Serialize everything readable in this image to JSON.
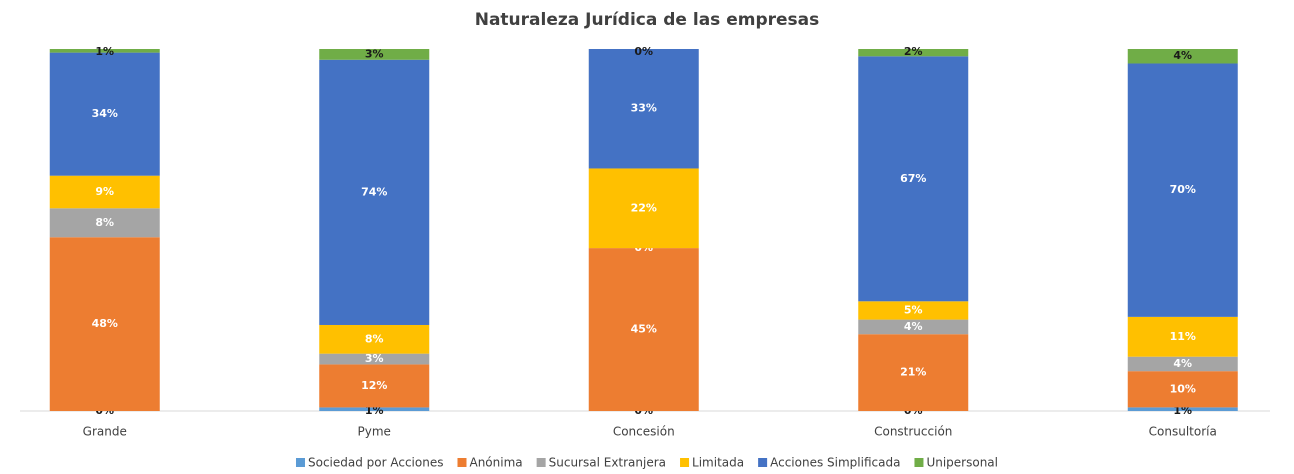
{
  "chart_data": {
    "type": "stacked_percent_bar",
    "title": "Naturaleza Jurídica de las empresas",
    "categories": [
      "Grande",
      "Pyme",
      "Concesión",
      "Construcción",
      "Consultoría"
    ],
    "series": [
      {
        "name": "Sociedad por Acciones",
        "color": "#5b9bd5",
        "values": [
          0,
          1,
          0,
          0,
          1
        ],
        "value_labels": [
          "0%",
          "1%",
          "0%",
          "0%",
          "1%"
        ]
      },
      {
        "name": "Anónima",
        "color": "#ed7d31",
        "values": [
          48,
          12,
          45,
          21,
          10
        ],
        "value_labels": [
          "48%",
          "12%",
          "45%",
          "21%",
          "10%"
        ]
      },
      {
        "name": "Sucursal Extranjera",
        "color": "#a5a5a5",
        "values": [
          8,
          3,
          0,
          4,
          4
        ],
        "value_labels": [
          "8%",
          "3%",
          "0%",
          "4%",
          "4%"
        ]
      },
      {
        "name": "Limitada",
        "color": "#ffc000",
        "values": [
          9,
          8,
          22,
          5,
          11
        ],
        "value_labels": [
          "9%",
          "8%",
          "22%",
          "5%",
          "11%"
        ]
      },
      {
        "name": "Acciones Simplificada",
        "color": "#4472c4",
        "values": [
          34,
          74,
          33,
          67,
          70
        ],
        "value_labels": [
          "34%",
          "74%",
          "33%",
          "67%",
          "70%"
        ]
      },
      {
        "name": "Unipersonal",
        "color": "#70ad47",
        "values": [
          1,
          3,
          0,
          2,
          4
        ],
        "value_labels": [
          "1%",
          "3%",
          "0%",
          "2%",
          "4%"
        ]
      }
    ],
    "legend": "bottom"
  }
}
